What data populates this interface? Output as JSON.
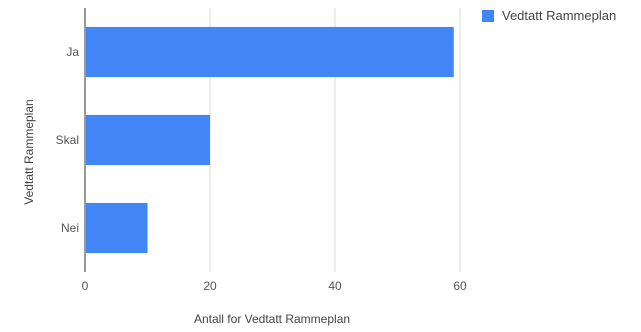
{
  "chart_data": {
    "type": "bar",
    "orientation": "horizontal",
    "categories": [
      "Ja",
      "Skal",
      "Nei"
    ],
    "series": [
      {
        "name": "Vedtatt Rammeplan",
        "values": [
          59,
          20,
          10
        ],
        "color": "#4285f4"
      }
    ],
    "xlabel": "Antall for Vedtatt Rammeplan",
    "ylabel": "Vedtatt Rammeplan",
    "xlim": [
      0,
      60
    ],
    "xticks": [
      "0",
      "20",
      "40",
      "60"
    ],
    "grid": true,
    "legend_position": "top-right"
  }
}
